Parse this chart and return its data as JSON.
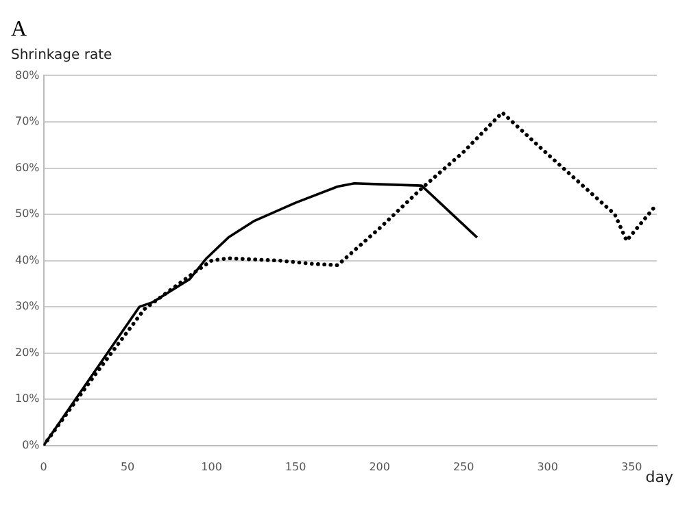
{
  "chart_data": {
    "type": "line",
    "title": "A",
    "xlabel": "day",
    "ylabel": "Shrinkage rate",
    "xlim": [
      0,
      365
    ],
    "xticks": [
      0,
      50,
      100,
      150,
      200,
      250,
      300,
      350
    ],
    "ylim": [
      0,
      80
    ],
    "yticks": [
      {
        "value": 0,
        "label": "0%"
      },
      {
        "value": 10,
        "label": "10%"
      },
      {
        "value": 20,
        "label": "20%"
      },
      {
        "value": 30,
        "label": "30%"
      },
      {
        "value": 40,
        "label": "40%"
      },
      {
        "value": 50,
        "label": "50%"
      },
      {
        "value": 60,
        "label": "60%"
      },
      {
        "value": 70,
        "label": "70%"
      },
      {
        "value": 80,
        "label": "80%"
      }
    ],
    "grid": "y",
    "legend": false,
    "marker": "none",
    "series": [
      {
        "color": "#000000",
        "line_style": "solid",
        "x": [
          0,
          57,
          65,
          87,
          97,
          110,
          125,
          150,
          175,
          185,
          200,
          225,
          258
        ],
        "values": [
          0,
          30,
          31,
          36,
          40.5,
          45,
          48.5,
          52.5,
          56,
          56.7,
          56.5,
          56.2,
          45
        ]
      },
      {
        "color": "#000000",
        "line_style": "dotted",
        "x": [
          0,
          30,
          60,
          90,
          100,
          110,
          140,
          160,
          175,
          200,
          225,
          250,
          273,
          300,
          340,
          347,
          363
        ],
        "values": [
          0,
          15,
          29.5,
          37.5,
          40,
          40.5,
          40,
          39.3,
          39,
          47,
          55.6,
          63.5,
          72,
          63,
          50,
          44.3,
          51.3
        ]
      }
    ]
  }
}
